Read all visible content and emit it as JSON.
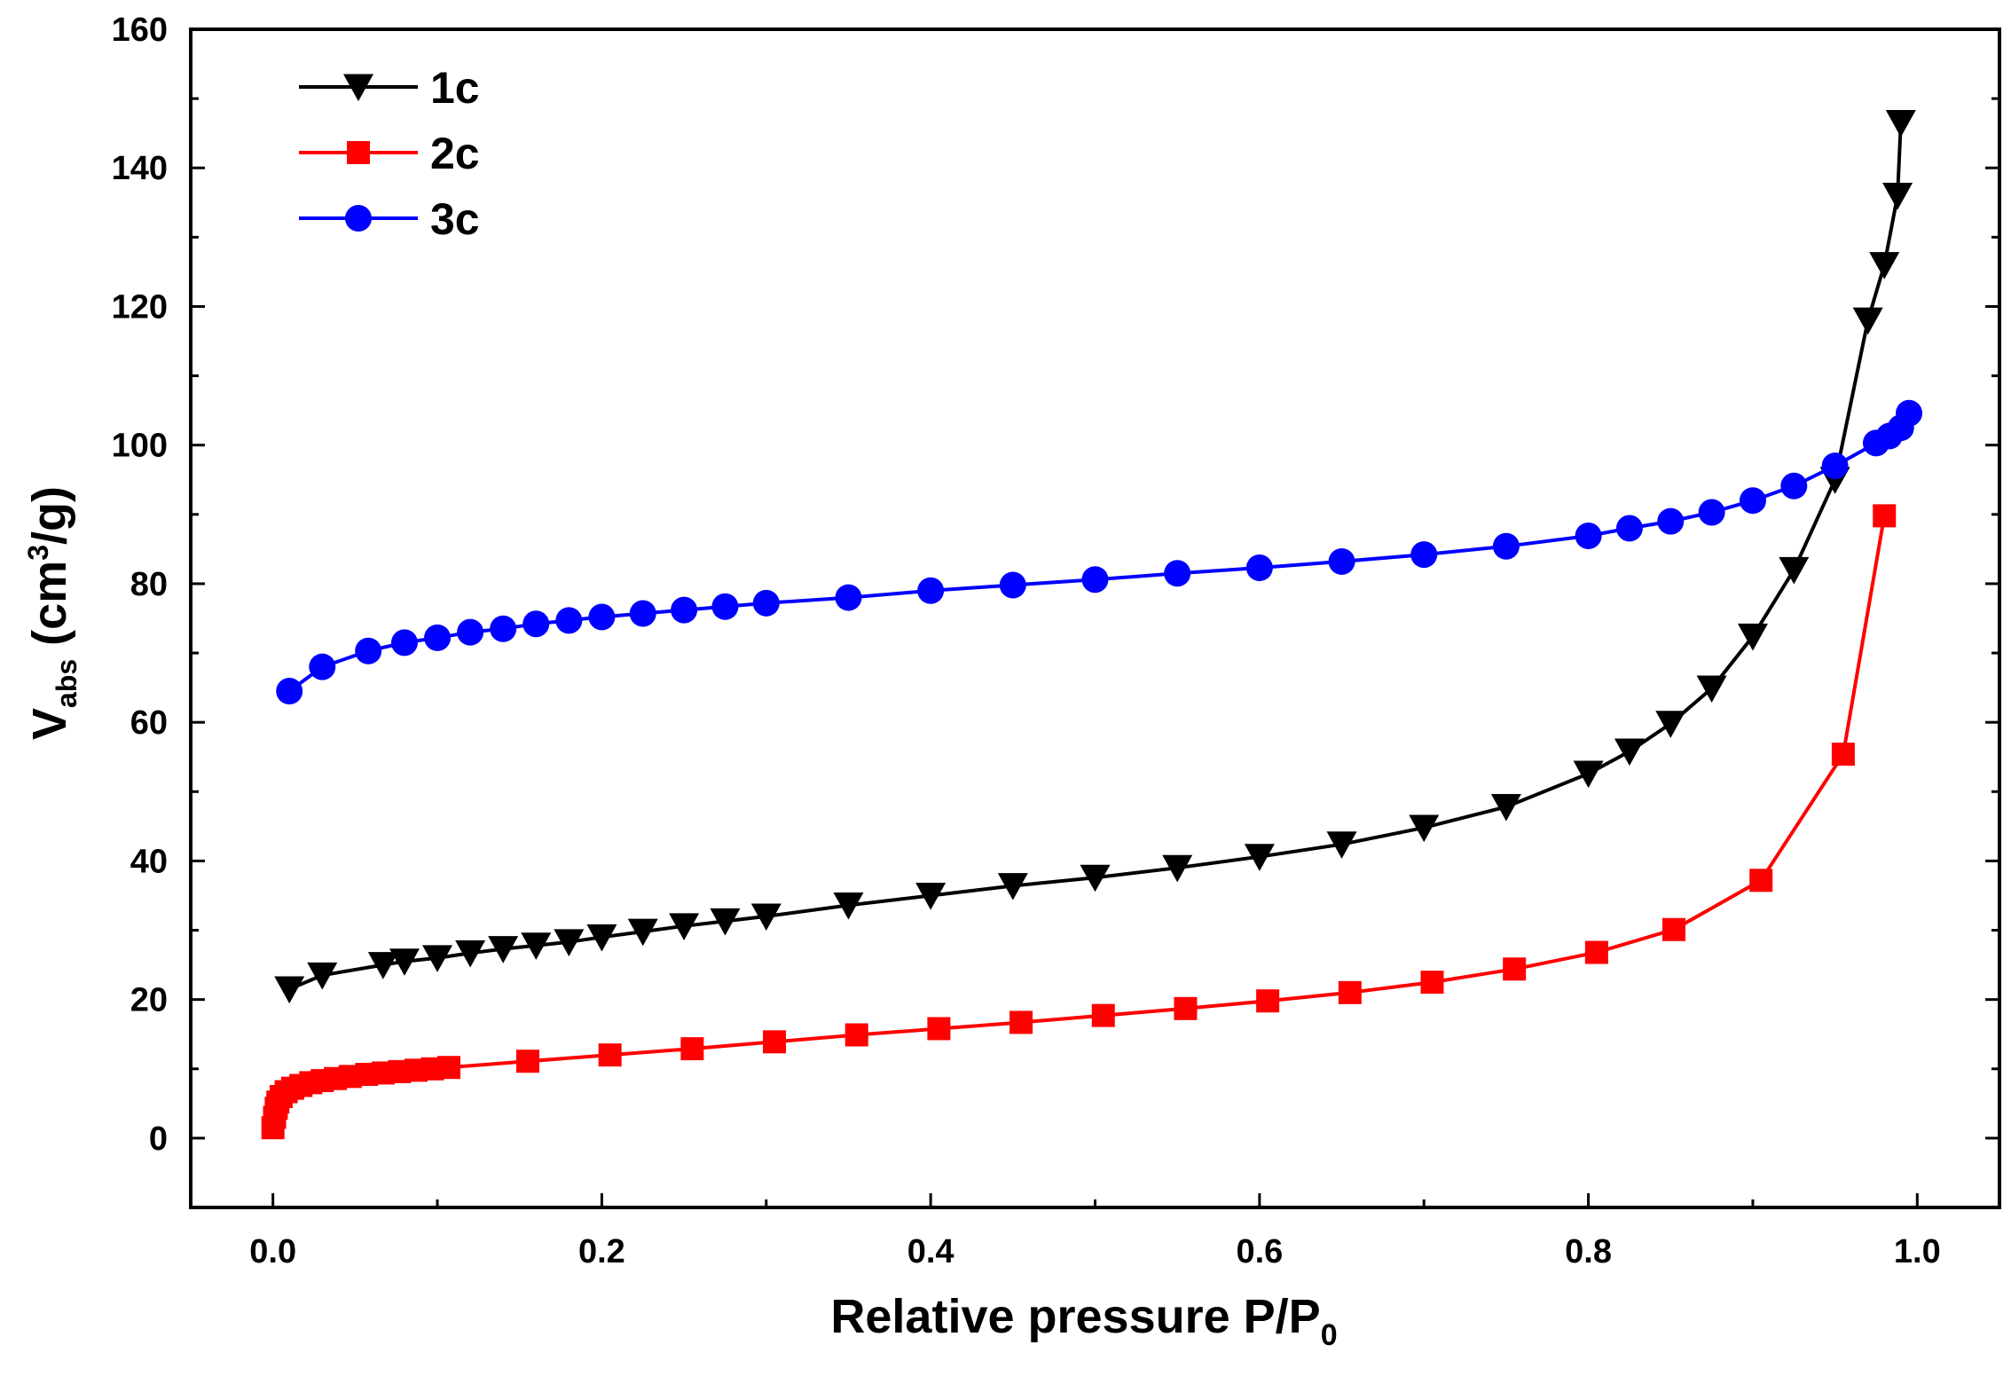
{
  "chart_data": {
    "type": "line",
    "xlabel": "Relative pressure P/P",
    "xlabel_sub": "0",
    "ylabel_main": "V",
    "ylabel_sub": "abs",
    "ylabel_unit_pre": " (cm",
    "ylabel_unit_sup": "3",
    "ylabel_unit_post": "/g)",
    "xlim": [
      -0.05,
      1.05
    ],
    "ylim": [
      -10,
      160
    ],
    "xticks": [
      0.0,
      0.2,
      0.4,
      0.6,
      0.8,
      1.0
    ],
    "xtick_labels": [
      "0.0",
      "0.2",
      "0.4",
      "0.6",
      "0.8",
      "1.0"
    ],
    "yticks": [
      0,
      20,
      40,
      60,
      80,
      100,
      120,
      140,
      160
    ],
    "ytick_labels": [
      "0",
      "20",
      "40",
      "60",
      "80",
      "100",
      "120",
      "140",
      "160"
    ],
    "legend_position": "top-left",
    "series": [
      {
        "name": "1c",
        "color": "#000000",
        "marker": "triangle-down",
        "x": [
          0.01,
          0.03,
          0.067,
          0.08,
          0.1,
          0.12,
          0.14,
          0.16,
          0.18,
          0.2,
          0.225,
          0.25,
          0.275,
          0.3,
          0.35,
          0.4,
          0.45,
          0.5,
          0.55,
          0.6,
          0.65,
          0.7,
          0.75,
          0.8,
          0.825,
          0.85,
          0.875,
          0.9,
          0.925,
          0.95,
          0.97,
          0.98,
          0.988,
          0.99
        ],
        "y": [
          21.5,
          23.5,
          25.0,
          25.5,
          26.0,
          26.7,
          27.3,
          27.8,
          28.3,
          29.0,
          29.8,
          30.6,
          31.3,
          32.0,
          33.6,
          35.0,
          36.4,
          37.6,
          39.0,
          40.6,
          42.4,
          44.8,
          47.8,
          52.6,
          55.8,
          59.8,
          64.9,
          72.4,
          82.0,
          95.0,
          118.0,
          126.0,
          136.0,
          146.5
        ]
      },
      {
        "name": "2c",
        "color": "#ff0000",
        "marker": "square",
        "x": [
          0.0,
          0.001,
          0.002,
          0.003,
          0.005,
          0.008,
          0.012,
          0.017,
          0.023,
          0.03,
          0.038,
          0.047,
          0.057,
          0.067,
          0.077,
          0.087,
          0.097,
          0.107,
          0.155,
          0.205,
          0.255,
          0.305,
          0.355,
          0.405,
          0.455,
          0.505,
          0.555,
          0.605,
          0.655,
          0.705,
          0.755,
          0.805,
          0.852,
          0.905,
          0.955,
          0.98
        ],
        "y": [
          1.5,
          3.0,
          4.3,
          5.2,
          6.0,
          6.7,
          7.2,
          7.6,
          8.0,
          8.3,
          8.6,
          8.9,
          9.2,
          9.4,
          9.6,
          9.8,
          10.0,
          10.2,
          11.1,
          12.0,
          12.9,
          13.9,
          14.9,
          15.8,
          16.7,
          17.7,
          18.7,
          19.8,
          21.0,
          22.5,
          24.4,
          26.8,
          30.1,
          37.2,
          55.4,
          89.8
        ]
      },
      {
        "name": "3c",
        "color": "#0000ff",
        "marker": "circle",
        "x": [
          0.01,
          0.03,
          0.058,
          0.08,
          0.1,
          0.12,
          0.14,
          0.16,
          0.18,
          0.2,
          0.225,
          0.25,
          0.275,
          0.3,
          0.35,
          0.4,
          0.45,
          0.5,
          0.55,
          0.6,
          0.65,
          0.7,
          0.75,
          0.8,
          0.825,
          0.85,
          0.875,
          0.9,
          0.925,
          0.95,
          0.975,
          0.983,
          0.99,
          0.995
        ],
        "y": [
          64.5,
          68.0,
          70.3,
          71.5,
          72.2,
          73.0,
          73.5,
          74.2,
          74.7,
          75.2,
          75.7,
          76.2,
          76.7,
          77.2,
          78.0,
          79.0,
          79.8,
          80.6,
          81.5,
          82.3,
          83.2,
          84.2,
          85.4,
          86.9,
          88.0,
          89.0,
          90.3,
          92.0,
          94.1,
          97.0,
          100.3,
          101.3,
          102.5,
          104.6
        ]
      }
    ]
  }
}
